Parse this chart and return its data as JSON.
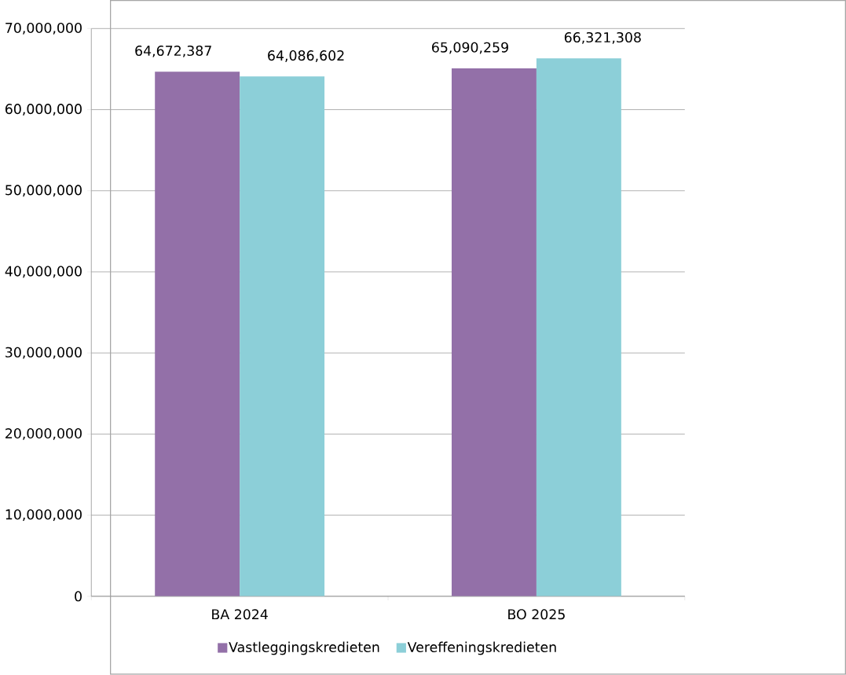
{
  "chart_data": {
    "type": "bar",
    "categories": [
      "BA 2024",
      "BO 2025"
    ],
    "series": [
      {
        "name": "Vastleggingskredieten",
        "color": "#9370a8",
        "values": [
          64672387,
          65090259
        ],
        "value_labels": [
          "64,672,387",
          "65,090,259"
        ]
      },
      {
        "name": "Vereffeningskredieten",
        "color": "#8ccfd8",
        "values": [
          64086602,
          66321308
        ],
        "value_labels": [
          "64,086,602",
          "66,321,308"
        ]
      }
    ],
    "ylim": [
      0,
      70000000
    ],
    "yticks": [
      {
        "value": 0,
        "label": "0"
      },
      {
        "value": 10000000,
        "label": "10,000,000"
      },
      {
        "value": 20000000,
        "label": "20,000,000"
      },
      {
        "value": 30000000,
        "label": "30,000,000"
      },
      {
        "value": 40000000,
        "label": "40,000,000"
      },
      {
        "value": 50000000,
        "label": "50,000,000"
      },
      {
        "value": 60000000,
        "label": "60,000,000"
      },
      {
        "value": 70000000,
        "label": "70,000,000"
      }
    ],
    "grid": "y",
    "legend": "bottom"
  }
}
